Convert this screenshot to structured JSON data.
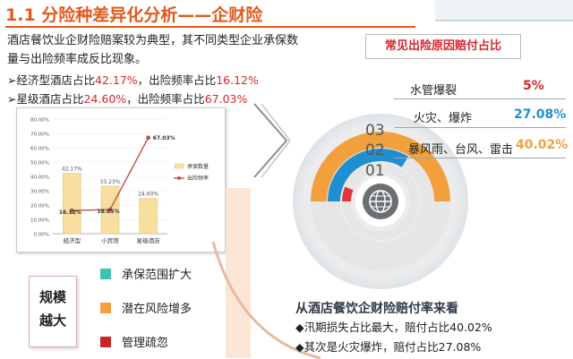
{
  "title": "1.1 分险种差异化分析——企财险",
  "description": "酒店餐饮业企财险赔案较为典型，其不同类型企业承保数量与出险频率成反比现象。",
  "bullets": [
    {
      "arrow": "➢",
      "prefix": "经济型酒店占比",
      "share": "42.17%",
      "mid": "，出险频率占比",
      "freq": "16.12%"
    },
    {
      "arrow": "➢",
      "prefix": "星级酒店占比",
      "share": "24.60%",
      "mid": "，出险频率占比",
      "freq": "67.03%"
    }
  ],
  "chart_data": [
    {
      "type": "bar",
      "categories": [
        "经济型",
        "小宾馆",
        "星级酒店"
      ],
      "series": [
        {
          "name": "承保数量",
          "type": "bar",
          "values": [
            42.17,
            33.23,
            24.6
          ],
          "labels": [
            "42.17%",
            "33.23%",
            "24.60%"
          ],
          "color": "#f7dfa0"
        },
        {
          "name": "出险频率",
          "type": "line",
          "values": [
            16.12,
            16.85,
            67.03
          ],
          "labels": [
            "16.12%",
            "16.85%",
            "67.03%"
          ],
          "color": "#c0504d"
        }
      ],
      "yticks": [
        "0.00%",
        "10.00%",
        "20.00%",
        "30.00%",
        "40.00%",
        "50.00%",
        "60.00%",
        "70.00%",
        "80.00%"
      ],
      "ylim": [
        0,
        80
      ],
      "legend_position": "right"
    },
    {
      "type": "pie",
      "title": "常见出险原因赔付占比",
      "categories": [
        "水管爆裂",
        "火灾、爆炸",
        "暴风雨、台风、雷击"
      ],
      "values": [
        5,
        27.08,
        40.02
      ],
      "labels": [
        "5%",
        "27.08%",
        "40.02%"
      ],
      "ranks": [
        "03",
        "02",
        "01"
      ]
    }
  ],
  "reasons": [
    {
      "label": "承保范围扩大",
      "color": "#3cc4b0"
    },
    {
      "label": "潜在风险增多",
      "color": "#f2a03d"
    },
    {
      "label": "管理疏忽",
      "color": "#c62828"
    }
  ],
  "scale": {
    "line1": "规模",
    "line2": "越大"
  },
  "summary": {
    "title": "从酒店餐饮企财险赔付率来看",
    "lines": [
      "◆汛期损失占比最大，赔付占比40.02%",
      "◆其次是火灾爆炸，赔付占比27.08%"
    ]
  },
  "colors": {
    "accent": "#e2591c",
    "red": "#d7262b",
    "blue": "#1f8fd1",
    "orange": "#f2a03d"
  },
  "icons": {
    "globe": "globe-icon"
  }
}
